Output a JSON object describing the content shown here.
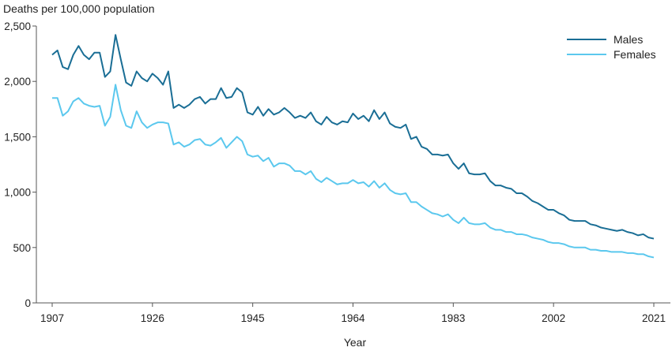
{
  "chart_data": {
    "type": "line",
    "ylabel": "Deaths per 100,000 population",
    "xlabel": "Year",
    "ylim": [
      0,
      2500
    ],
    "xlim": [
      1907,
      2021
    ],
    "yticks": [
      0,
      500,
      1000,
      1500,
      2000,
      2500
    ],
    "ytick_labels": [
      "0",
      "500",
      "1,000",
      "1,500",
      "2,000",
      "2,500"
    ],
    "xticks": [
      1907,
      1926,
      1945,
      1964,
      1983,
      2002,
      2021
    ],
    "xtick_labels": [
      "1907",
      "1926",
      "1945",
      "1964",
      "1983",
      "2002",
      "2021"
    ],
    "legend": "top-right",
    "grid": false,
    "colors": {
      "males": "#1a6e95",
      "females": "#5bc8ee",
      "axis": "#555555"
    },
    "x": [
      1907,
      1908,
      1909,
      1910,
      1911,
      1912,
      1913,
      1914,
      1915,
      1916,
      1917,
      1918,
      1919,
      1920,
      1921,
      1922,
      1923,
      1924,
      1925,
      1926,
      1927,
      1928,
      1929,
      1930,
      1931,
      1932,
      1933,
      1934,
      1935,
      1936,
      1937,
      1938,
      1939,
      1940,
      1941,
      1942,
      1943,
      1944,
      1945,
      1946,
      1947,
      1948,
      1949,
      1950,
      1951,
      1952,
      1953,
      1954,
      1955,
      1956,
      1957,
      1958,
      1959,
      1960,
      1961,
      1962,
      1963,
      1964,
      1965,
      1966,
      1967,
      1968,
      1969,
      1970,
      1971,
      1972,
      1973,
      1974,
      1975,
      1976,
      1977,
      1978,
      1979,
      1980,
      1981,
      1982,
      1983,
      1984,
      1985,
      1986,
      1987,
      1988,
      1989,
      1990,
      1991,
      1992,
      1993,
      1994,
      1995,
      1996,
      1997,
      1998,
      1999,
      2000,
      2001,
      2002,
      2003,
      2004,
      2005,
      2006,
      2007,
      2008,
      2009,
      2010,
      2011,
      2012,
      2013,
      2014,
      2015,
      2016,
      2017,
      2018,
      2019,
      2020,
      2021
    ],
    "series": [
      {
        "name": "Males",
        "values": [
          2240,
          2280,
          2130,
          2110,
          2240,
          2320,
          2240,
          2200,
          2260,
          2260,
          2040,
          2090,
          2420,
          2200,
          1990,
          1960,
          2090,
          2030,
          2000,
          2070,
          2030,
          1970,
          2090,
          1760,
          1790,
          1760,
          1790,
          1840,
          1860,
          1800,
          1840,
          1840,
          1940,
          1850,
          1860,
          1940,
          1900,
          1720,
          1700,
          1770,
          1690,
          1750,
          1700,
          1720,
          1760,
          1720,
          1670,
          1690,
          1670,
          1720,
          1640,
          1610,
          1680,
          1630,
          1610,
          1640,
          1630,
          1710,
          1660,
          1690,
          1640,
          1740,
          1660,
          1720,
          1620,
          1590,
          1580,
          1610,
          1480,
          1500,
          1410,
          1390,
          1340,
          1340,
          1330,
          1340,
          1260,
          1210,
          1260,
          1170,
          1160,
          1160,
          1170,
          1100,
          1060,
          1060,
          1040,
          1030,
          990,
          990,
          960,
          920,
          900,
          870,
          840,
          840,
          810,
          790,
          750,
          740,
          740,
          740,
          710,
          700,
          680,
          670,
          660,
          650,
          660,
          640,
          630,
          610,
          620,
          590,
          580
        ]
      },
      {
        "name": "Females",
        "values": [
          1850,
          1850,
          1690,
          1730,
          1820,
          1850,
          1800,
          1780,
          1770,
          1780,
          1600,
          1680,
          1970,
          1740,
          1600,
          1580,
          1730,
          1630,
          1580,
          1610,
          1630,
          1630,
          1620,
          1430,
          1450,
          1410,
          1430,
          1470,
          1480,
          1430,
          1420,
          1450,
          1490,
          1400,
          1450,
          1500,
          1460,
          1340,
          1320,
          1330,
          1280,
          1310,
          1230,
          1260,
          1260,
          1240,
          1190,
          1190,
          1160,
          1190,
          1120,
          1090,
          1130,
          1100,
          1070,
          1080,
          1080,
          1110,
          1080,
          1090,
          1050,
          1100,
          1040,
          1080,
          1020,
          990,
          980,
          990,
          910,
          910,
          870,
          840,
          810,
          800,
          780,
          800,
          750,
          720,
          770,
          720,
          710,
          710,
          720,
          680,
          660,
          660,
          640,
          640,
          620,
          620,
          610,
          590,
          580,
          570,
          550,
          540,
          540,
          530,
          510,
          500,
          500,
          500,
          480,
          480,
          470,
          470,
          460,
          460,
          460,
          450,
          450,
          440,
          440,
          420,
          410
        ]
      }
    ]
  }
}
